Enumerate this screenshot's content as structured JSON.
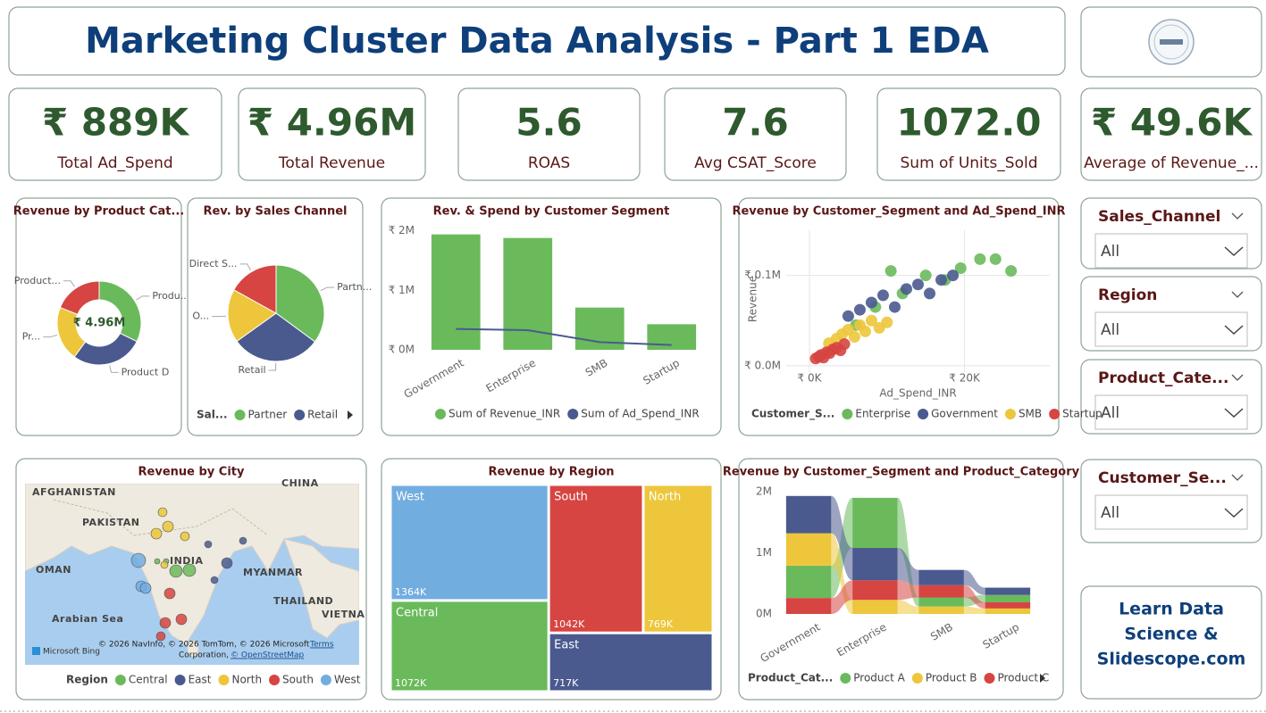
{
  "header": {
    "title": "Marketing Cluster Data Analysis - Part 1 EDA"
  },
  "kpis": [
    {
      "value": "₹ 889K",
      "label": "Total Ad_Spend"
    },
    {
      "value": "₹ 4.96M",
      "label": "Total Revenue"
    },
    {
      "value": "5.6",
      "label": "ROAS"
    },
    {
      "value": "7.6",
      "label": "Avg CSAT_Score"
    },
    {
      "value": "1072.0",
      "label": "Sum of Units_Sold"
    },
    {
      "value": "₹ 49.6K",
      "label": "Average of Revenue_..."
    }
  ],
  "chart_data": [
    {
      "type": "donut",
      "title": "Revenue by Product Cat...",
      "center_label": "₹ 4.96M",
      "categories": [
        "Produ...",
        "Product D",
        "Pr...",
        "Product..."
      ],
      "values": [
        1.6,
        1.38,
        1.04,
        0.94
      ],
      "colors": [
        "#6aba5c",
        "#4a5a8f",
        "#edc63b",
        "#d64541"
      ]
    },
    {
      "type": "pie",
      "title": "Rev. by Sales Channel",
      "categories": [
        "Partn...",
        "Retail",
        "O...",
        "Direct S..."
      ],
      "values": [
        1.74,
        1.49,
        0.89,
        0.84
      ],
      "colors": [
        "#6aba5c",
        "#4a5a8f",
        "#edc63b",
        "#d64541"
      ],
      "legend": {
        "title": "Sal...",
        "entries": [
          "Partner",
          "Retail"
        ]
      }
    },
    {
      "type": "combo",
      "title": "Rev. & Spend by Customer Segment",
      "categories": [
        "Government",
        "Enterprise",
        "SMB",
        "Startup"
      ],
      "series": [
        {
          "name": "Sum of Revenue_INR",
          "kind": "bar",
          "color": "#6aba5c",
          "values": [
            1940000,
            1880000,
            710000,
            430000
          ]
        },
        {
          "name": "Sum of Ad_Spend_INR",
          "kind": "line",
          "color": "#4a5a8f",
          "values": [
            350000,
            330000,
            130000,
            80000
          ]
        }
      ],
      "ylim": [
        0,
        2100000
      ],
      "yticks": [
        {
          "value": 0,
          "label": "₹ 0M"
        },
        {
          "value": 1000000,
          "label": "₹ 1M"
        },
        {
          "value": 2000000,
          "label": "₹ 2M"
        }
      ],
      "grid": false
    },
    {
      "type": "scatter",
      "title": "Revenue by Customer_Segment and Ad_Spend_INR",
      "x_label": "Ad_Spend_INR",
      "y_label": "Revenue",
      "legend_title": "Customer_S...",
      "series": [
        {
          "name": "Enterprise",
          "color": "#6aba5c",
          "x": [
            6000,
            8500,
            10500,
            12000,
            15000,
            17500,
            19500,
            22000,
            24000,
            26000
          ],
          "y": [
            45000,
            65000,
            105000,
            80000,
            100000,
            95000,
            108000,
            118000,
            118000,
            105000
          ]
        },
        {
          "name": "Government",
          "color": "#4a5a8f",
          "x": [
            5000,
            6500,
            8000,
            9500,
            11000,
            12500,
            14000,
            15500,
            17000,
            18500
          ],
          "y": [
            55000,
            62000,
            70000,
            78000,
            65000,
            85000,
            90000,
            80000,
            95000,
            100000
          ]
        },
        {
          "name": "SMB",
          "color": "#edc63b",
          "x": [
            2500,
            3500,
            4200,
            5000,
            5800,
            6500,
            7200,
            8000,
            9000,
            10000
          ],
          "y": [
            25000,
            30000,
            35000,
            40000,
            32000,
            45000,
            38000,
            50000,
            42000,
            48000
          ]
        },
        {
          "name": "Startup",
          "color": "#d64541",
          "x": [
            800,
            1200,
            1500,
            1800,
            2200,
            2600,
            3000,
            3500,
            4000,
            4500
          ],
          "y": [
            8000,
            10000,
            12000,
            9000,
            15000,
            14000,
            18000,
            20000,
            17000,
            24000
          ]
        }
      ],
      "xlim": [
        -3000,
        31000
      ],
      "ylim": [
        -8000,
        150000
      ],
      "xticks": [
        {
          "value": 0,
          "label": "₹ 0K"
        },
        {
          "value": 20000,
          "label": "₹ 20K"
        }
      ],
      "yticks": [
        {
          "value": 0,
          "label": "₹ 0.0M"
        },
        {
          "value": 100000,
          "label": "₹ 0.1M"
        }
      ],
      "grid": true
    },
    {
      "type": "map",
      "title": "Revenue by City",
      "labels": [
        "AFGHANISTAN",
        "PAKISTAN",
        "INDIA",
        "MYANMAR",
        "OMAN",
        "THAILAND",
        "Arabian Sea",
        "VIETNA",
        "CHINA"
      ],
      "logo": "Microsoft Bing",
      "attribution": "© 2026 NavInfo, © 2026 TomTom, © 2026 Microsoft",
      "terms": "Terms",
      "attribution_line2": "Corporation,",
      "osm": "© OpenStreetMap",
      "legend": {
        "title": "Region",
        "entries": [
          "Central",
          "East",
          "North",
          "South",
          "West"
        ]
      },
      "colors": [
        "#6aba5c",
        "#4a5a8f",
        "#edc63b",
        "#d64541",
        "#72ade0"
      ]
    },
    {
      "type": "treemap",
      "title": "Revenue by Region",
      "categories": [
        "West",
        "Central",
        "South",
        "North",
        "East"
      ],
      "values": [
        1364,
        1072,
        1042,
        769,
        717
      ],
      "value_labels": [
        "1364K",
        "1072K",
        "1042K",
        "769K",
        "717K"
      ],
      "colors": [
        "#72ade0",
        "#6aba5c",
        "#d64541",
        "#edc63b",
        "#4a5a8f"
      ]
    },
    {
      "type": "ribbon",
      "title": "Revenue by Customer_Segment and Product_Category",
      "categories": [
        "Government",
        "Enterprise",
        "SMB",
        "Startup"
      ],
      "legend_title": "Product_Cat...",
      "series": [
        {
          "name": "Product A",
          "color": "#6aba5c",
          "values": [
            530000,
            820000,
            150000,
            120000
          ]
        },
        {
          "name": "Product B",
          "color": "#edc63b",
          "values": [
            530000,
            230000,
            120000,
            90000
          ]
        },
        {
          "name": "Product C",
          "color": "#d64541",
          "values": [
            260000,
            320000,
            200000,
            100000
          ]
        },
        {
          "color": "#4a5a8f",
          "values": [
            610000,
            530000,
            250000,
            120000
          ]
        }
      ],
      "ylim": [
        0,
        2100000
      ],
      "yticks": [
        {
          "value": 0,
          "label": "0M"
        },
        {
          "value": 1000000,
          "label": "1M"
        },
        {
          "value": 2000000,
          "label": "2M"
        }
      ],
      "grid": false
    }
  ],
  "slicers": [
    {
      "title": "Sales_Channel",
      "value": "All"
    },
    {
      "title": "Region",
      "value": "All"
    },
    {
      "title": "Product_Cate...",
      "value": "All"
    },
    {
      "title": "Customer_Se...",
      "value": "All"
    }
  ],
  "promo": {
    "lines": [
      "Learn Data",
      "Science &",
      "Slidescope.com"
    ]
  }
}
